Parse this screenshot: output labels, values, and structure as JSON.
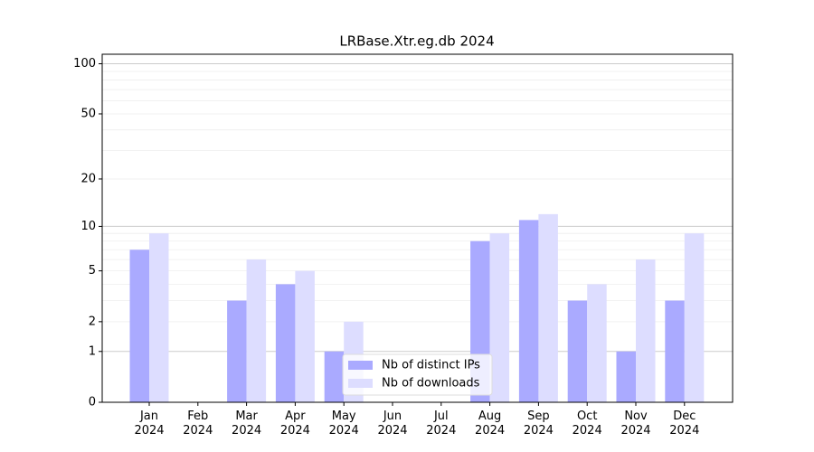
{
  "chart_data": {
    "type": "bar",
    "title": "LRBase.Xtr.eg.db 2024",
    "categories": [
      "Jan 2024",
      "Feb 2024",
      "Mar 2024",
      "Apr 2024",
      "May 2024",
      "Jun 2024",
      "Jul 2024",
      "Aug 2024",
      "Sep 2024",
      "Oct 2024",
      "Nov 2024",
      "Dec 2024"
    ],
    "series": [
      {
        "name": "Nb of distinct IPs",
        "color": "#aaaaff",
        "values": [
          7,
          0,
          3,
          4,
          1,
          0,
          0,
          8,
          11,
          3,
          1,
          3
        ]
      },
      {
        "name": "Nb of downloads",
        "color": "#ddddff",
        "values": [
          9,
          0,
          6,
          5,
          2,
          0,
          0,
          9,
          12,
          4,
          6,
          9
        ]
      }
    ],
    "yscale": "log1p",
    "ylim": [
      0,
      114
    ],
    "yticks": [
      0,
      1,
      2,
      5,
      10,
      20,
      50,
      100
    ],
    "y_major_gridlines": [
      1,
      10,
      100
    ],
    "y_minor_gridlines": [
      2,
      3,
      4,
      5,
      6,
      7,
      8,
      9,
      20,
      30,
      40,
      50,
      60,
      70,
      80,
      90
    ],
    "grid": true,
    "legend": "lower center"
  }
}
